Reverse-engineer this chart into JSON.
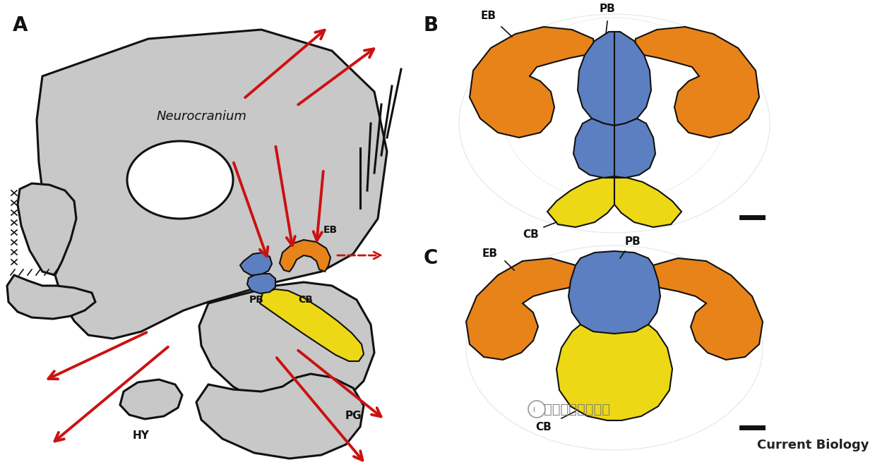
{
  "background_color": "#ffffff",
  "panel_A_label": "A",
  "panel_B_label": "B",
  "panel_C_label": "C",
  "neurocranium_label": "Neurocranium",
  "label_EB": "EB",
  "label_PB": "PB",
  "label_CB": "CB",
  "label_HY": "HY",
  "label_PG": "PG",
  "color_orange": "#E8831A",
  "color_blue": "#5B7FC0",
  "color_yellow": "#EDD815",
  "color_gray_fill": "#C8C8C8",
  "color_gray_light": "#E0E0E0",
  "color_red": "#CC1111",
  "color_black": "#111111",
  "color_white": "#ffffff",
  "color_outline": "#888888",
  "watermark_text": "水生动物健康评估",
  "journal_text": "Current Biology",
  "lw_skull": 2.2,
  "lw_bone": 1.5,
  "lw_arrow": 2.8
}
